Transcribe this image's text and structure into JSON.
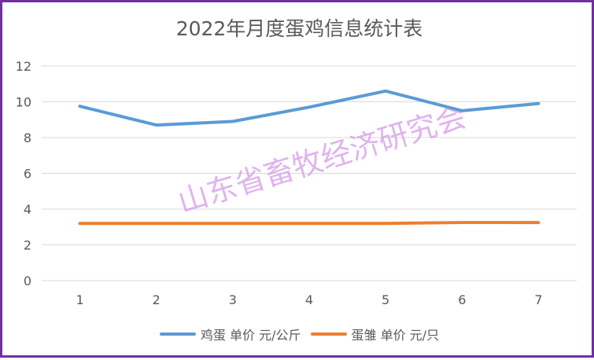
{
  "chart_data": {
    "type": "line",
    "title": "2022年月度蛋鸡信息统计表",
    "xlabel": "",
    "ylabel": "",
    "categories": [
      "1",
      "2",
      "3",
      "4",
      "5",
      "6",
      "7"
    ],
    "ylim": [
      0,
      12
    ],
    "yticks": [
      "0",
      "2",
      "4",
      "6",
      "8",
      "10",
      "12"
    ],
    "grid": true,
    "legend": "bottom",
    "series": [
      {
        "name": "鸡蛋 单价 元/公斤",
        "color": "#5b9bd5",
        "values": [
          9.75,
          8.7,
          8.9,
          9.7,
          10.6,
          9.5,
          9.9
        ]
      },
      {
        "name": "蛋雏 单价 元/只",
        "color": "#ed7d31",
        "values": [
          3.2,
          3.2,
          3.2,
          3.2,
          3.2,
          3.25,
          3.25
        ]
      }
    ]
  },
  "watermark": "山东省畜牧经济研究会",
  "colors": {
    "border": "#7030a0",
    "grid": "#d9d9d9",
    "text": "#595959"
  }
}
